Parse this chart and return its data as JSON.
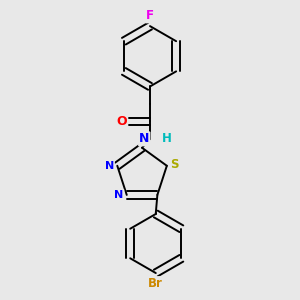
{
  "background_color": "#e8e8e8",
  "bond_color": "#000000",
  "atom_colors": {
    "F": "#ee00ee",
    "O": "#ff0000",
    "N": "#0000ff",
    "H": "#00bbbb",
    "S": "#aaaa00",
    "Br": "#cc8800"
  },
  "figsize": [
    3.0,
    3.0
  ],
  "dpi": 100,
  "lw": 1.4,
  "sep": 0.012
}
